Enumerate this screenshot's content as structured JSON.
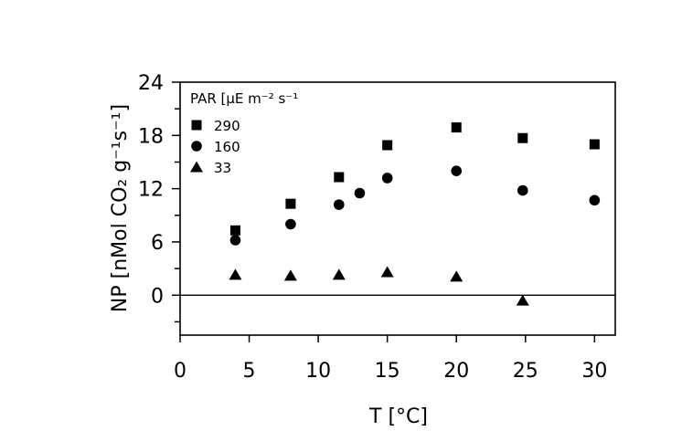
{
  "chart_data": {
    "type": "scatter",
    "title": "",
    "xlabel": "T [°C]",
    "ylabel": "NP [nMol CO₂ g⁻¹s⁻¹]",
    "xlim": [
      0,
      31.5
    ],
    "ylim": [
      -4.5,
      24
    ],
    "xticks": [
      0,
      5,
      10,
      15,
      20,
      25,
      30
    ],
    "yticks": [
      0,
      6,
      12,
      18,
      24
    ],
    "legend_title": "PAR [µE m⁻² s⁻¹",
    "legend_position": "top-left",
    "zero_line": true,
    "series": [
      {
        "name": "290",
        "marker": "square",
        "points": [
          [
            4,
            7.3
          ],
          [
            8,
            10.3
          ],
          [
            11.5,
            13.3
          ],
          [
            15,
            16.9
          ],
          [
            20,
            18.9
          ],
          [
            24.8,
            17.7
          ],
          [
            30,
            17.0
          ]
        ]
      },
      {
        "name": "160",
        "marker": "circle",
        "points": [
          [
            4,
            6.2
          ],
          [
            8,
            8.0
          ],
          [
            11.5,
            10.2
          ],
          [
            13,
            11.5
          ],
          [
            15,
            13.2
          ],
          [
            20,
            14.0
          ],
          [
            24.8,
            11.8
          ],
          [
            30,
            10.7
          ]
        ]
      },
      {
        "name": "33",
        "marker": "triangle",
        "points": [
          [
            4,
            2.3
          ],
          [
            8,
            2.2
          ],
          [
            11.5,
            2.3
          ],
          [
            15,
            2.6
          ],
          [
            20,
            2.1
          ],
          [
            24.8,
            -0.6
          ]
        ]
      }
    ]
  }
}
